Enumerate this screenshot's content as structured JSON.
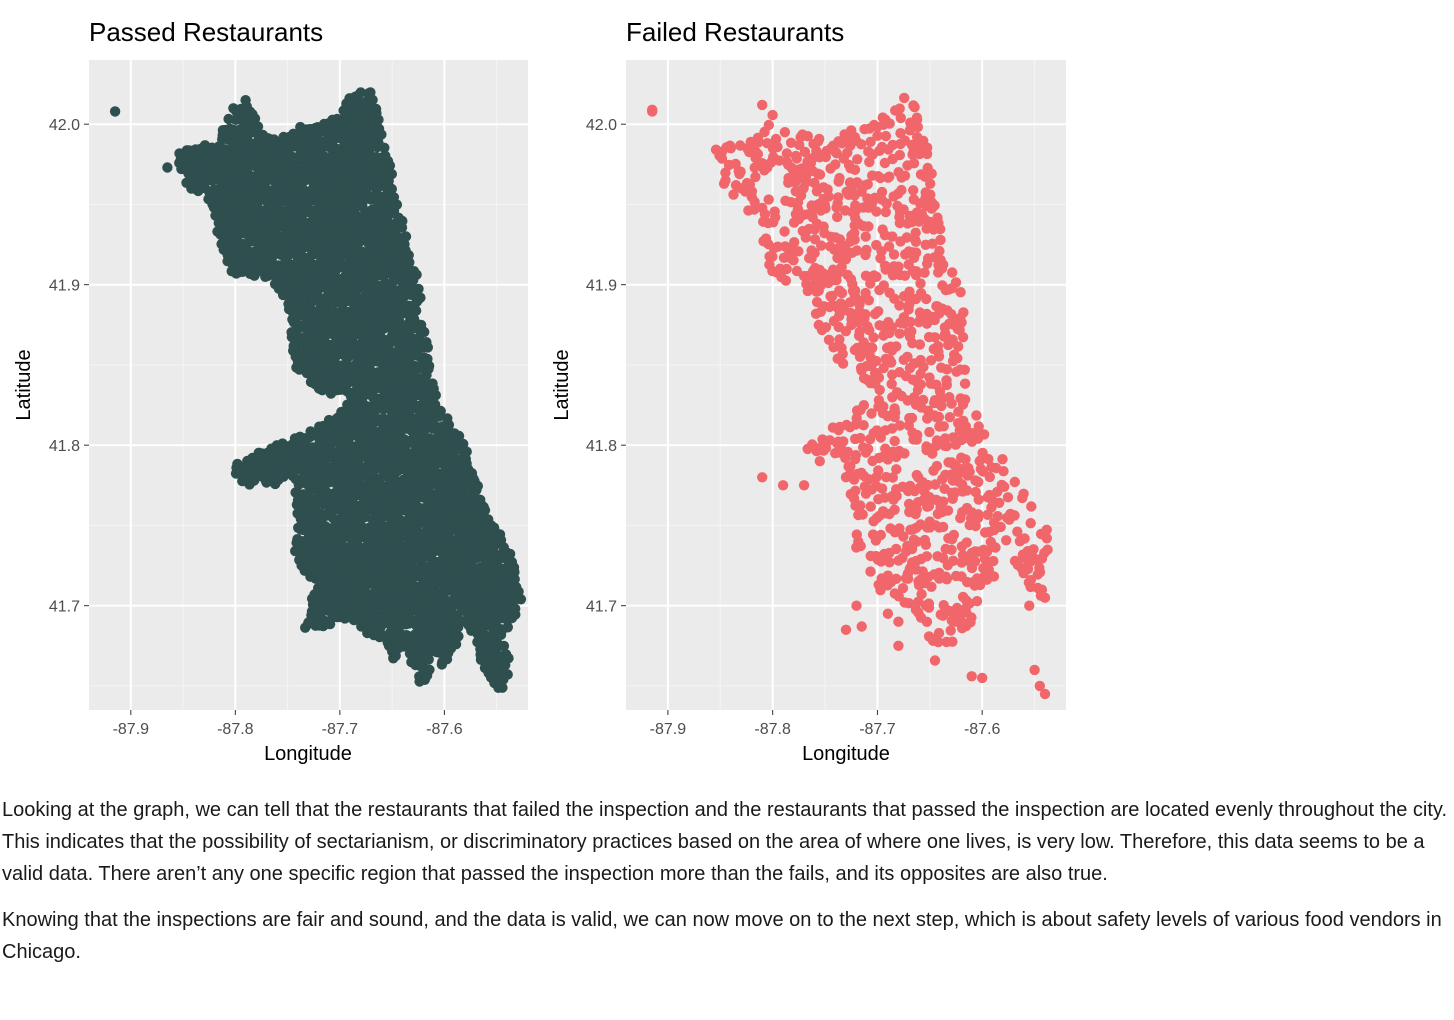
{
  "chart_data": [
    {
      "type": "scatter",
      "title": "Passed Restaurants",
      "xlabel": "Longitude",
      "ylabel": "Latitude",
      "xlim": [
        -87.94,
        -87.52
      ],
      "ylim": [
        41.635,
        42.04
      ],
      "xticks": [
        -87.9,
        -87.8,
        -87.7,
        -87.6
      ],
      "xtick_labels": [
        "-87.9",
        "-87.8",
        "-87.7",
        "-87.6"
      ],
      "yticks": [
        41.7,
        41.8,
        41.9,
        42.0
      ],
      "ytick_labels": [
        "41.7",
        "41.8",
        "41.9",
        "42.0"
      ],
      "grid": true,
      "point_color": "#2f4f4f",
      "panel_background": "#ebebeb",
      "density": 1.0,
      "points": [
        [
          -87.915,
          42.008
        ],
        [
          -87.865,
          41.973
        ]
      ],
      "regions": [
        [
          [
            -87.853,
            41.985
          ],
          [
            -87.82,
            41.988
          ],
          [
            -87.81,
            42.0
          ],
          [
            -87.8,
            42.015
          ],
          [
            -87.79,
            42.017
          ],
          [
            -87.775,
            41.995
          ],
          [
            -87.76,
            41.99
          ],
          [
            -87.74,
            41.998
          ],
          [
            -87.72,
            42.0
          ],
          [
            -87.7,
            42.005
          ],
          [
            -87.69,
            42.02
          ],
          [
            -87.67,
            42.02
          ],
          [
            -87.66,
            42.0
          ],
          [
            -87.655,
            41.98
          ],
          [
            -87.65,
            41.97
          ],
          [
            -87.645,
            41.95
          ],
          [
            -87.635,
            41.93
          ],
          [
            -87.628,
            41.91
          ],
          [
            -87.622,
            41.895
          ],
          [
            -87.625,
            41.885
          ],
          [
            -87.615,
            41.86
          ],
          [
            -87.612,
            41.84
          ],
          [
            -87.6,
            41.82
          ],
          [
            -87.58,
            41.8
          ],
          [
            -87.57,
            41.78
          ],
          [
            -87.56,
            41.76
          ],
          [
            -87.545,
            41.745
          ],
          [
            -87.535,
            41.73
          ],
          [
            -87.525,
            41.705
          ],
          [
            -87.535,
            41.69
          ],
          [
            -87.545,
            41.68
          ],
          [
            -87.535,
            41.66
          ],
          [
            -87.545,
            41.645
          ],
          [
            -87.555,
            41.65
          ],
          [
            -87.565,
            41.665
          ],
          [
            -87.57,
            41.68
          ],
          [
            -87.58,
            41.69
          ],
          [
            -87.59,
            41.67
          ],
          [
            -87.6,
            41.66
          ],
          [
            -87.61,
            41.67
          ],
          [
            -87.615,
            41.655
          ],
          [
            -87.625,
            41.65
          ],
          [
            -87.63,
            41.66
          ],
          [
            -87.64,
            41.675
          ],
          [
            -87.645,
            41.66
          ],
          [
            -87.66,
            41.68
          ],
          [
            -87.67,
            41.68
          ],
          [
            -87.68,
            41.685
          ],
          [
            -87.7,
            41.69
          ],
          [
            -87.72,
            41.685
          ],
          [
            -87.735,
            41.683
          ],
          [
            -87.728,
            41.7
          ],
          [
            -87.725,
            41.715
          ],
          [
            -87.735,
            41.72
          ],
          [
            -87.745,
            41.735
          ],
          [
            -87.74,
            41.75
          ],
          [
            -87.745,
            41.765
          ],
          [
            -87.742,
            41.78
          ],
          [
            -87.76,
            41.775
          ],
          [
            -87.79,
            41.775
          ],
          [
            -87.8,
            41.78
          ],
          [
            -87.8,
            41.79
          ],
          [
            -87.78,
            41.795
          ],
          [
            -87.76,
            41.8
          ],
          [
            -87.74,
            41.805
          ],
          [
            -87.73,
            41.81
          ],
          [
            -87.72,
            41.813
          ],
          [
            -87.7,
            41.82
          ],
          [
            -87.69,
            41.83
          ],
          [
            -87.71,
            41.83
          ],
          [
            -87.73,
            41.84
          ],
          [
            -87.745,
            41.848
          ],
          [
            -87.745,
            41.86
          ],
          [
            -87.748,
            41.875
          ],
          [
            -87.75,
            41.89
          ],
          [
            -87.76,
            41.895
          ],
          [
            -87.772,
            41.905
          ],
          [
            -87.792,
            41.905
          ],
          [
            -87.81,
            41.91
          ],
          [
            -87.815,
            41.925
          ],
          [
            -87.82,
            41.94
          ],
          [
            -87.83,
            41.955
          ],
          [
            -87.845,
            41.96
          ],
          [
            -87.855,
            41.975
          ]
        ]
      ]
    },
    {
      "type": "scatter",
      "title": "Failed Restaurants",
      "xlabel": "Longitude",
      "ylabel": "Latitude",
      "xlim": [
        -87.94,
        -87.52
      ],
      "ylim": [
        41.635,
        42.04
      ],
      "xticks": [
        -87.9,
        -87.8,
        -87.7,
        -87.6
      ],
      "xtick_labels": [
        "-87.9",
        "-87.8",
        "-87.7",
        "-87.6"
      ],
      "yticks": [
        41.7,
        41.8,
        41.9,
        42.0
      ],
      "ytick_labels": [
        "41.7",
        "41.8",
        "41.9",
        "42.0"
      ],
      "grid": true,
      "point_color": "#f0666a",
      "panel_background": "#ebebeb",
      "density": 0.38,
      "points": [
        [
          -87.915,
          42.009
        ],
        [
          -87.915,
          42.008
        ],
        [
          -87.845,
          41.965
        ],
        [
          -87.835,
          41.962
        ],
        [
          -87.81,
          41.78
        ],
        [
          -87.79,
          41.775
        ],
        [
          -87.77,
          41.775
        ],
        [
          -87.755,
          41.79
        ],
        [
          -87.73,
          41.685
        ],
        [
          -87.715,
          41.687
        ],
        [
          -87.72,
          41.7
        ],
        [
          -87.55,
          41.66
        ],
        [
          -87.545,
          41.65
        ],
        [
          -87.54,
          41.645
        ],
        [
          -87.54,
          41.705
        ],
        [
          -87.555,
          41.7
        ],
        [
          -87.6,
          41.655
        ],
        [
          -87.61,
          41.656
        ],
        [
          -87.625,
          41.69
        ],
        [
          -87.68,
          41.69
        ],
        [
          -87.69,
          41.695
        ],
        [
          -87.68,
          41.675
        ],
        [
          -87.84,
          41.985
        ],
        [
          -87.82,
          41.985
        ],
        [
          -87.81,
          42.012
        ]
      ],
      "regions": [
        [
          [
            -87.855,
            41.985
          ],
          [
            -87.82,
            41.99
          ],
          [
            -87.8,
            42.01
          ],
          [
            -87.78,
            41.995
          ],
          [
            -87.75,
            41.99
          ],
          [
            -87.73,
            41.998
          ],
          [
            -87.71,
            41.998
          ],
          [
            -87.69,
            42.012
          ],
          [
            -87.67,
            42.02
          ],
          [
            -87.655,
            42.0
          ],
          [
            -87.65,
            41.975
          ],
          [
            -87.642,
            41.95
          ],
          [
            -87.635,
            41.93
          ],
          [
            -87.628,
            41.91
          ],
          [
            -87.615,
            41.89
          ],
          [
            -87.62,
            41.875
          ],
          [
            -87.615,
            41.855
          ],
          [
            -87.61,
            41.83
          ],
          [
            -87.598,
            41.815
          ],
          [
            -87.588,
            41.8
          ],
          [
            -87.575,
            41.785
          ],
          [
            -87.56,
            41.77
          ],
          [
            -87.545,
            41.755
          ],
          [
            -87.535,
            41.745
          ],
          [
            -87.535,
            41.73
          ],
          [
            -87.54,
            41.715
          ],
          [
            -87.545,
            41.7
          ],
          [
            -87.555,
            41.71
          ],
          [
            -87.565,
            41.72
          ],
          [
            -87.575,
            41.73
          ],
          [
            -87.59,
            41.715
          ],
          [
            -87.6,
            41.7
          ],
          [
            -87.61,
            41.69
          ],
          [
            -87.625,
            41.68
          ],
          [
            -87.635,
            41.665
          ],
          [
            -87.645,
            41.665
          ],
          [
            -87.65,
            41.68
          ],
          [
            -87.665,
            41.695
          ],
          [
            -87.68,
            41.705
          ],
          [
            -87.7,
            41.71
          ],
          [
            -87.71,
            41.725
          ],
          [
            -87.72,
            41.735
          ],
          [
            -87.73,
            41.745
          ],
          [
            -87.728,
            41.76
          ],
          [
            -87.73,
            41.78
          ],
          [
            -87.74,
            41.79
          ],
          [
            -87.76,
            41.795
          ],
          [
            -87.775,
            41.8
          ],
          [
            -87.76,
            41.805
          ],
          [
            -87.745,
            41.81
          ],
          [
            -87.725,
            41.82
          ],
          [
            -87.705,
            41.83
          ],
          [
            -87.712,
            41.84
          ],
          [
            -87.735,
            41.85
          ],
          [
            -87.75,
            41.865
          ],
          [
            -87.76,
            41.88
          ],
          [
            -87.768,
            41.895
          ],
          [
            -87.79,
            41.9
          ],
          [
            -87.805,
            41.91
          ],
          [
            -87.81,
            41.925
          ],
          [
            -87.815,
            41.94
          ],
          [
            -87.83,
            41.95
          ],
          [
            -87.845,
            41.96
          ],
          [
            -87.855,
            41.975
          ]
        ]
      ]
    }
  ],
  "paragraphs": [
    "Looking at the graph, we can tell that the restaurants that failed the inspection and the restaurants that passed the inspection are located evenly throughout the city. This indicates that the possibility of sectarianism, or discriminatory practices based on the area of where one lives, is very low. Therefore, this data seems to be a valid data. There aren’t any one specific region that passed the inspection more than the fails, and its opposites are also true.",
    "Knowing that the inspections are fair and sound, and the data is valid, we can now move on to the next step, which is about safety levels of various food vendors in Chicago."
  ]
}
